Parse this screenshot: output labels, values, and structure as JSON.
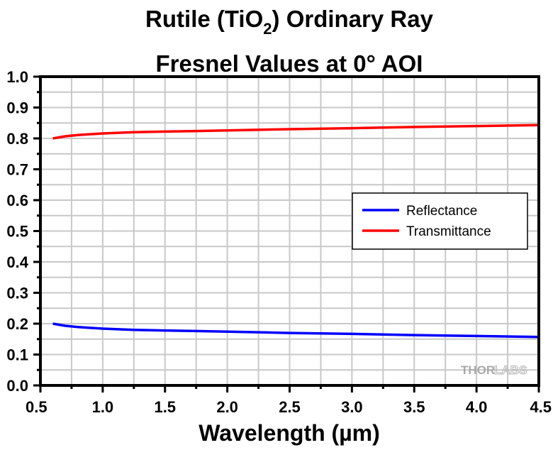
{
  "chart_data": {
    "type": "line",
    "title_line1_pre": "Rutile (TiO",
    "title_line1_sub": "2",
    "title_line1_post": ") Ordinary Ray",
    "title_line2": "Fresnel Values at 0° AOI",
    "xlabel": "Wavelength (µm)",
    "ylabel": "",
    "xlim": [
      0.5,
      4.5
    ],
    "ylim": [
      0.0,
      1.0
    ],
    "grid": true,
    "xticks": [
      "0.5",
      "1.0",
      "1.5",
      "2.0",
      "2.5",
      "3.0",
      "3.5",
      "4.0",
      "4.5"
    ],
    "yticks": [
      "0.0",
      "0.1",
      "0.2",
      "0.3",
      "0.4",
      "0.5",
      "0.6",
      "0.7",
      "0.8",
      "0.9",
      "1.0"
    ],
    "legend_placement": "center-right",
    "x": [
      0.6,
      0.7,
      0.8,
      1.0,
      1.25,
      1.5,
      1.75,
      2.0,
      2.5,
      3.0,
      3.5,
      4.0,
      4.5
    ],
    "series": [
      {
        "name": "Reflectance",
        "color": "#0000ff",
        "values": [
          0.2,
          0.193,
          0.189,
          0.184,
          0.18,
          0.178,
          0.176,
          0.174,
          0.17,
          0.167,
          0.163,
          0.16,
          0.157
        ]
      },
      {
        "name": "Transmittance",
        "color": "#ff0000",
        "values": [
          0.8,
          0.807,
          0.811,
          0.816,
          0.82,
          0.822,
          0.824,
          0.826,
          0.83,
          0.833,
          0.837,
          0.84,
          0.843
        ]
      }
    ],
    "watermark": "THORLABS"
  }
}
